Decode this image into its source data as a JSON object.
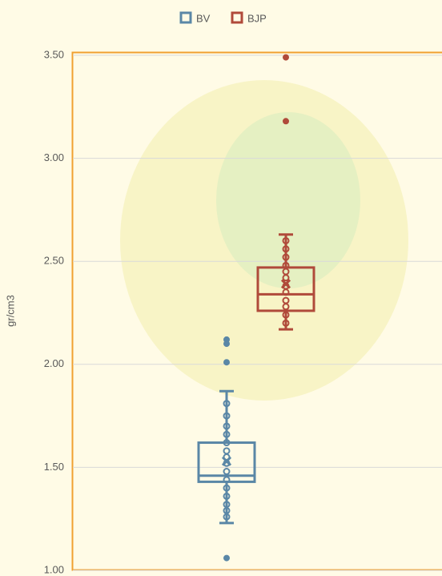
{
  "chart_data": {
    "type": "box",
    "y_label": "gr/cm3",
    "ylim": [
      1,
      3.5
    ],
    "yticks": [
      {
        "value": 1,
        "label": "1.00"
      },
      {
        "value": 1.5,
        "label": "1.50"
      },
      {
        "value": 2,
        "label": "2.00"
      },
      {
        "value": 2.5,
        "label": "2.50"
      },
      {
        "value": 3,
        "label": "3.00"
      },
      {
        "value": 3.5,
        "label": "3.50"
      }
    ],
    "grid": true,
    "legend": "top",
    "series": [
      {
        "name": "BV",
        "color": "#5a87a6",
        "min": 1.23,
        "q1": 1.43,
        "median": 1.46,
        "q3": 1.62,
        "max": 1.87,
        "mean": 1.53,
        "points": [
          1.81,
          1.75,
          1.7,
          1.66,
          1.62,
          1.58,
          1.55,
          1.52,
          1.48,
          1.44,
          1.4,
          1.36,
          1.32,
          1.29,
          1.26
        ],
        "outliers": [
          2.12,
          2.1,
          2.01,
          1.06
        ]
      },
      {
        "name": "BJP",
        "color": "#b04a3a",
        "min": 2.17,
        "q1": 2.26,
        "median": 2.34,
        "q3": 2.47,
        "max": 2.63,
        "mean": 2.39,
        "points": [
          2.6,
          2.56,
          2.52,
          2.48,
          2.45,
          2.42,
          2.38,
          2.35,
          2.31,
          2.28,
          2.24,
          2.2
        ],
        "outliers": [
          3.49,
          3.18
        ]
      }
    ]
  }
}
